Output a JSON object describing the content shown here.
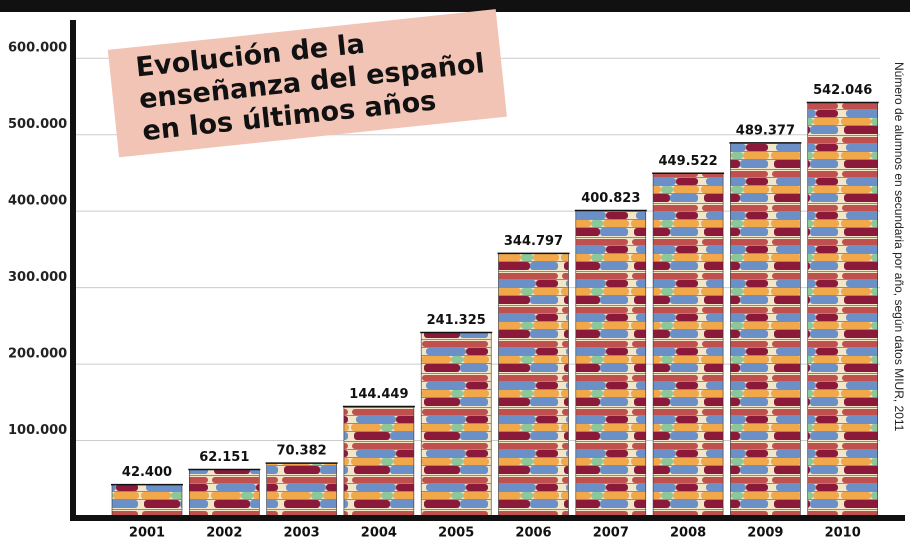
{
  "chart_data": {
    "type": "bar",
    "title": [
      "Evolución de la",
      "enseñanza del español",
      "en los últimos años"
    ],
    "note": "Número de alumnos en secundaria por año, según datos MIUR, 2011",
    "categories": [
      "2001",
      "2002",
      "2003",
      "2004",
      "2005",
      "2006",
      "2007",
      "2008",
      "2009",
      "2010"
    ],
    "values": [
      42400,
      62151,
      70382,
      144449,
      241325,
      344797,
      400823,
      449522,
      489377,
      542046
    ],
    "value_labels": [
      "42.400",
      "62.151",
      "70.382",
      "144.449",
      "241.325",
      "344.797",
      "400.823",
      "449.522",
      "489.377",
      "542.046"
    ],
    "ylim": [
      0,
      650000
    ],
    "yticks": [
      {
        "value": 100000,
        "label": "100.000"
      },
      {
        "value": 200000,
        "label": "200.000"
      },
      {
        "value": 300000,
        "label": "300.000"
      },
      {
        "value": 400000,
        "label": "400.000"
      },
      {
        "value": 500000,
        "label": "500.000"
      },
      {
        "value": 600000,
        "label": "600.000"
      }
    ],
    "grid": true
  }
}
